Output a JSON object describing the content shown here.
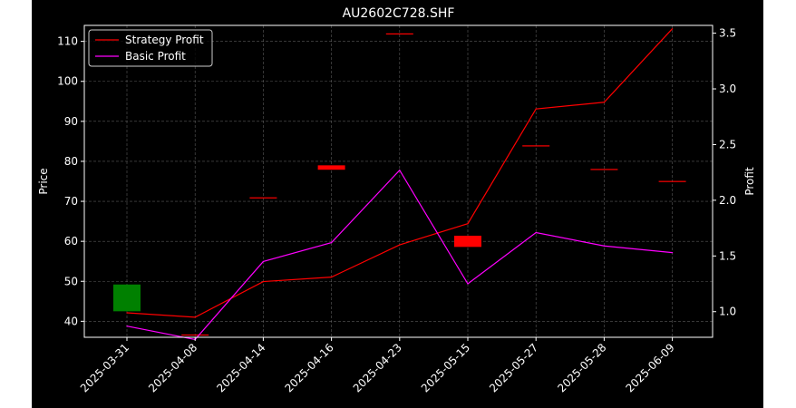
{
  "chart_data": {
    "type": "line",
    "title": "AU2602C728.SHF",
    "categories": [
      "2025-03-31",
      "2025-04-08",
      "2025-04-14",
      "2025-04-16",
      "2025-04-23",
      "2025-05-15",
      "2025-05-27",
      "2025-05-28",
      "2025-06-09"
    ],
    "ylabel_left": "Price",
    "ylabel_right": "Profit",
    "ylim_left": [
      36,
      114
    ],
    "yticks_left": [
      40,
      50,
      60,
      70,
      80,
      90,
      100,
      110
    ],
    "ylim_right": [
      0.77,
      3.57
    ],
    "yticks_right": [
      "1.0",
      "1.5",
      "2.0",
      "2.5",
      "3.0",
      "3.5"
    ],
    "grid": true,
    "legend_position": "top-left",
    "candles": [
      {
        "open": 42.5,
        "close": 49.2,
        "color": "#008000"
      },
      {
        "open": 36.7,
        "close": 36.5,
        "color": "#ff0000"
      },
      {
        "open": 71.0,
        "close": 70.8,
        "color": "#ff0000"
      },
      {
        "open": 79.0,
        "close": 77.9,
        "color": "#ff0000"
      },
      {
        "open": 112.0,
        "close": 111.8,
        "color": "#ff0000"
      },
      {
        "open": 61.4,
        "close": 58.6,
        "color": "#ff0000"
      },
      {
        "open": 84.0,
        "close": 83.8,
        "color": "#ff0000"
      },
      {
        "open": 78.1,
        "close": 77.9,
        "color": "#ff0000"
      },
      {
        "open": 75.1,
        "close": 74.9,
        "color": "#ff0000"
      }
    ],
    "series": [
      {
        "name": "Strategy Profit",
        "color": "#ff0000",
        "values": [
          0.99,
          0.95,
          1.27,
          1.31,
          1.6,
          1.79,
          2.82,
          2.88,
          3.54
        ]
      },
      {
        "name": "Basic Profit",
        "color": "#ff00ff",
        "values": [
          0.87,
          0.75,
          1.45,
          1.62,
          2.27,
          1.25,
          1.71,
          1.59,
          1.53
        ]
      }
    ]
  }
}
